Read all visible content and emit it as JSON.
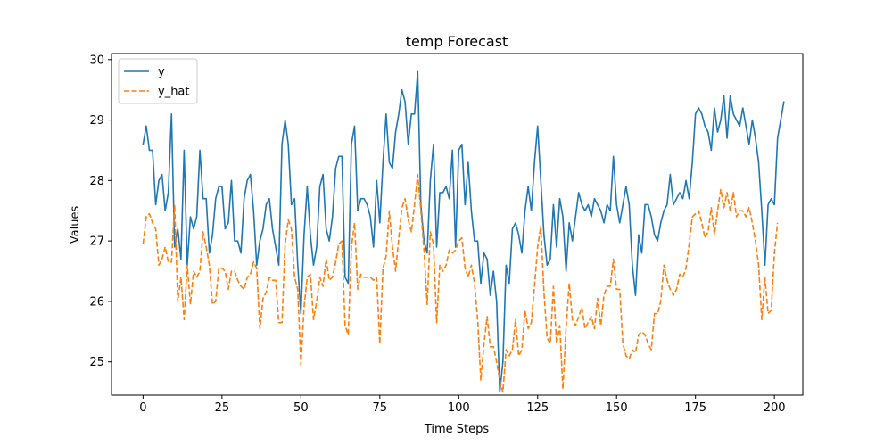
{
  "chart_data": {
    "type": "line",
    "title": "temp Forecast",
    "xlabel": "Time Steps",
    "ylabel": "Values",
    "xlim": [
      -10,
      209
    ],
    "ylim": [
      24.45,
      30.1
    ],
    "xticks": [
      0,
      25,
      50,
      75,
      100,
      125,
      150,
      175,
      200
    ],
    "yticks": [
      25,
      26,
      27,
      28,
      29,
      30
    ],
    "grid": false,
    "legend": "top-left",
    "series": [
      {
        "name": "y",
        "color": "#1f77b4",
        "style": "solid",
        "values": [
          28.6,
          28.9,
          28.5,
          28.5,
          27.6,
          28.0,
          28.1,
          27.5,
          27.8,
          29.1,
          26.9,
          27.2,
          26.7,
          28.5,
          26.6,
          27.4,
          27.2,
          27.4,
          28.5,
          27.7,
          27.7,
          26.8,
          27.1,
          27.7,
          27.9,
          27.9,
          27.2,
          27.3,
          28.0,
          27.0,
          27.0,
          26.8,
          27.7,
          28.0,
          28.1,
          27.5,
          26.6,
          27.0,
          27.2,
          27.6,
          27.7,
          27.2,
          26.9,
          26.6,
          28.6,
          29.0,
          28.6,
          27.6,
          27.7,
          26.6,
          25.8,
          27.1,
          27.9,
          27.1,
          26.6,
          26.9,
          27.9,
          28.1,
          27.2,
          27.0,
          27.4,
          28.2,
          28.4,
          28.4,
          26.4,
          26.3,
          28.6,
          28.9,
          27.5,
          27.7,
          27.7,
          27.6,
          27.4,
          26.9,
          28.0,
          27.3,
          28.3,
          29.1,
          28.3,
          28.2,
          28.8,
          29.1,
          29.5,
          29.3,
          28.6,
          29.1,
          29.1,
          29.8,
          27.6,
          27.0,
          26.8,
          28.0,
          28.6,
          26.9,
          27.8,
          27.8,
          27.9,
          27.7,
          28.5,
          26.9,
          28.5,
          28.6,
          27.6,
          28.3,
          27.5,
          27.0,
          27.0,
          26.3,
          26.8,
          26.7,
          26.1,
          26.5,
          26.0,
          24.5,
          25.0,
          26.6,
          26.3,
          27.2,
          27.3,
          27.1,
          26.8,
          27.5,
          27.9,
          27.5,
          28.3,
          28.9,
          28.0,
          27.1,
          26.6,
          26.7,
          27.6,
          26.9,
          27.7,
          27.4,
          26.5,
          27.3,
          27.0,
          27.4,
          27.8,
          27.6,
          27.5,
          27.6,
          27.4,
          27.7,
          27.6,
          27.5,
          27.3,
          27.6,
          27.5,
          28.4,
          27.6,
          27.3,
          27.6,
          27.9,
          27.6,
          26.6,
          26.1,
          27.1,
          26.8,
          27.6,
          27.6,
          27.4,
          27.1,
          27.0,
          27.3,
          27.5,
          27.6,
          28.1,
          27.6,
          27.7,
          27.8,
          27.7,
          28.0,
          27.7,
          28.3,
          29.1,
          29.2,
          29.1,
          28.9,
          28.8,
          28.5,
          29.2,
          28.8,
          29.0,
          29.4,
          28.7,
          29.4,
          29.1,
          29.0,
          28.9,
          29.2,
          28.9,
          28.6,
          29.0,
          28.7,
          28.3,
          27.5,
          26.6,
          27.6,
          27.7,
          27.6,
          28.7,
          29.0,
          29.3
        ]
      },
      {
        "name": "y_hat",
        "color": "#ff7f0e",
        "style": "dashed",
        "values": [
          26.95,
          27.4,
          27.45,
          27.3,
          27.2,
          26.6,
          26.7,
          26.9,
          26.65,
          26.65,
          27.6,
          26.0,
          26.4,
          25.7,
          26.6,
          25.95,
          26.5,
          26.4,
          26.5,
          27.15,
          26.9,
          26.6,
          25.95,
          26.0,
          26.55,
          26.55,
          26.5,
          26.2,
          26.5,
          26.5,
          26.35,
          26.25,
          26.2,
          26.4,
          26.45,
          26.65,
          26.55,
          25.55,
          26.05,
          26.15,
          26.4,
          26.35,
          26.35,
          25.65,
          25.65,
          26.95,
          27.35,
          27.2,
          26.4,
          26.2,
          24.95,
          25.9,
          26.4,
          26.45,
          25.7,
          26.0,
          26.4,
          26.25,
          26.7,
          26.35,
          26.4,
          26.65,
          26.95,
          27.0,
          25.6,
          25.45,
          26.9,
          27.3,
          26.2,
          26.45,
          26.4,
          26.4,
          26.4,
          26.35,
          26.4,
          25.3,
          26.55,
          26.75,
          27.5,
          26.9,
          26.5,
          27.05,
          27.55,
          27.7,
          27.35,
          27.15,
          27.6,
          28.1,
          27.5,
          26.85,
          25.95,
          27.15,
          26.95,
          25.65,
          26.6,
          26.5,
          26.6,
          26.85,
          26.8,
          26.85,
          27.0,
          27.05,
          26.55,
          26.4,
          26.6,
          26.3,
          25.7,
          24.7,
          25.3,
          25.75,
          25.25,
          25.25,
          25.0,
          24.7,
          24.5,
          25.2,
          25.1,
          25.2,
          25.7,
          25.1,
          25.2,
          25.85,
          25.55,
          25.65,
          26.25,
          26.9,
          27.25,
          26.15,
          25.4,
          25.3,
          26.25,
          25.3,
          25.6,
          24.55,
          25.55,
          26.3,
          25.7,
          25.6,
          25.75,
          25.9,
          25.55,
          25.65,
          25.75,
          25.55,
          26.05,
          25.6,
          26.1,
          26.25,
          26.25,
          26.7,
          26.2,
          26.2,
          25.3,
          25.1,
          25.05,
          25.2,
          25.15,
          25.45,
          25.5,
          25.45,
          25.3,
          25.2,
          25.8,
          25.8,
          26.0,
          26.6,
          26.35,
          26.2,
          26.1,
          26.2,
          26.45,
          26.4,
          26.55,
          26.95,
          27.4,
          27.45,
          27.5,
          27.3,
          27.05,
          27.15,
          27.55,
          27.1,
          27.5,
          27.85,
          27.55,
          27.8,
          27.5,
          27.8,
          27.4,
          27.5,
          27.5,
          27.4,
          27.55,
          27.3,
          27.0,
          26.6,
          25.7,
          26.4,
          25.8,
          25.85,
          26.8,
          27.3
        ]
      }
    ]
  }
}
